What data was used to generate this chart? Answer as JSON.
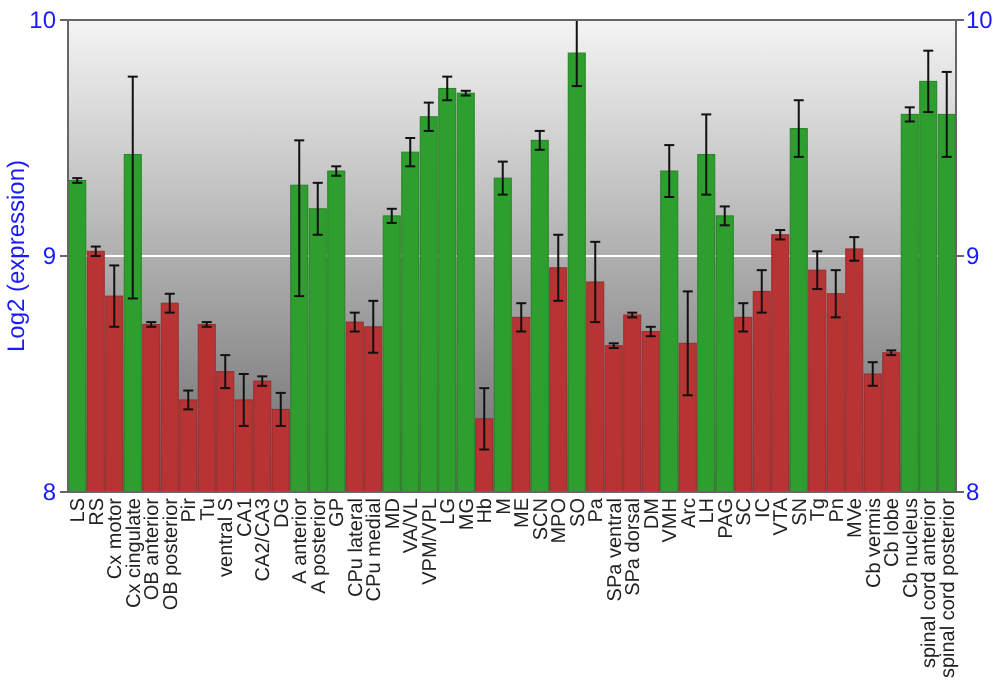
{
  "chart_data": {
    "type": "bar",
    "ylabel": "Log2 (expression)",
    "categories": [
      "LS",
      "RS",
      "Cx motor",
      "Cx cingulate",
      "OB anterior",
      "OB posterior",
      "Pir",
      "Tu",
      "ventral S",
      "CA1",
      "CA2/CA3",
      "DG",
      "A anterior",
      "A posterior",
      "GP",
      "CPu lateral",
      "CPu medial",
      "MD",
      "VA/VL",
      "VPM/VPL",
      "LG",
      "MG",
      "Hb",
      "M",
      "ME",
      "SCN",
      "MPO",
      "SO",
      "Pa",
      "SPa ventral",
      "SPa dorsal",
      "DM",
      "VMH",
      "Arc",
      "LH",
      "PAG",
      "SC",
      "IC",
      "VTA",
      "SN",
      "Tg",
      "Pn",
      "MVe",
      "Cb vermis",
      "Cb lobe",
      "Cb nucleus",
      "spinal cord anterior",
      "spinal cord posterior"
    ],
    "values": [
      9.32,
      9.02,
      8.83,
      9.43,
      8.71,
      8.8,
      8.39,
      8.71,
      8.51,
      8.39,
      8.47,
      8.35,
      9.3,
      9.2,
      9.36,
      8.72,
      8.7,
      9.17,
      9.44,
      9.59,
      9.71,
      9.69,
      8.31,
      9.33,
      8.74,
      9.49,
      8.95,
      9.86,
      8.89,
      8.62,
      8.75,
      8.68,
      9.36,
      8.63,
      9.43,
      9.17,
      8.74,
      8.85,
      9.09,
      9.54,
      8.94,
      8.84,
      9.03,
      8.5,
      8.59,
      9.6,
      9.74,
      9.6
    ],
    "errors": [
      0.01,
      0.02,
      0.13,
      [
        8.82,
        9.76
      ],
      0.01,
      0.04,
      0.04,
      0.01,
      0.07,
      0.11,
      0.02,
      0.07,
      [
        8.83,
        9.49
      ],
      0.11,
      0.02,
      0.04,
      0.11,
      0.03,
      0.06,
      0.06,
      0.05,
      0.01,
      0.13,
      0.07,
      0.06,
      0.04,
      0.14,
      [
        9.72,
        10.0
      ],
      0.17,
      0.01,
      0.01,
      0.02,
      0.11,
      0.22,
      0.17,
      0.04,
      0.06,
      0.09,
      0.02,
      0.12,
      0.08,
      0.1,
      0.05,
      0.05,
      0.01,
      0.03,
      0.13,
      0.18
    ],
    "colors": [
      "#2e9e2e",
      "#b83434",
      "#b83434",
      "#2e9e2e",
      "#b83434",
      "#b83434",
      "#b83434",
      "#b83434",
      "#b83434",
      "#b83434",
      "#b83434",
      "#b83434",
      "#2e9e2e",
      "#2e9e2e",
      "#2e9e2e",
      "#b83434",
      "#b83434",
      "#2e9e2e",
      "#2e9e2e",
      "#2e9e2e",
      "#2e9e2e",
      "#2e9e2e",
      "#b83434",
      "#2e9e2e",
      "#b83434",
      "#2e9e2e",
      "#b83434",
      "#2e9e2e",
      "#b83434",
      "#b83434",
      "#b83434",
      "#b83434",
      "#2e9e2e",
      "#b83434",
      "#2e9e2e",
      "#2e9e2e",
      "#b83434",
      "#b83434",
      "#b83434",
      "#2e9e2e",
      "#b83434",
      "#b83434",
      "#b83434",
      "#b83434",
      "#b83434",
      "#2e9e2e",
      "#2e9e2e",
      "#2e9e2e"
    ],
    "ylim": [
      8,
      10
    ],
    "yticks": [
      8,
      9,
      10
    ],
    "y2lim": [
      8,
      10
    ],
    "y2ticks": [
      8,
      9,
      10
    ],
    "grid": "y"
  }
}
